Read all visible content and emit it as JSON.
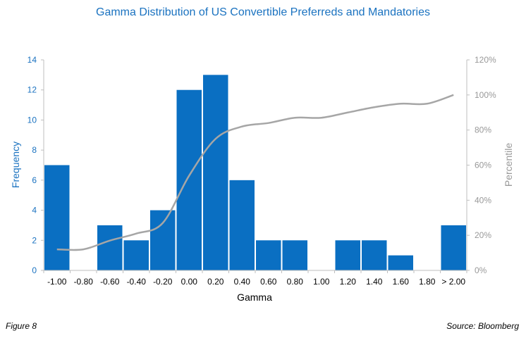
{
  "colors": {
    "bar": "#0a6fc2",
    "line": "#a6a6a6",
    "title": "#1a72c0",
    "left_axis": "#1a72c0",
    "right_axis": "#999999"
  },
  "figure": {
    "caption": "Figure 8",
    "source": "Source: Bloomberg"
  },
  "chart_data": {
    "type": "bar",
    "title": "Gamma Distribution of US Convertible Preferreds and Mandatories",
    "xlabel": "Gamma",
    "ylabel": "Frequency",
    "y2label": "Percentile",
    "categories": [
      "-1.00",
      "-0.80",
      "-0.60",
      "-0.40",
      "-0.20",
      "0.00",
      "0.20",
      "0.40",
      "0.60",
      "0.80",
      "1.00",
      "1.20",
      "1.40",
      "1.60",
      "1.80",
      "> 2.00"
    ],
    "ylim": [
      0,
      14
    ],
    "yticks": [
      "0",
      "2",
      "4",
      "6",
      "8",
      "10",
      "12",
      "14"
    ],
    "y2lim": [
      0,
      1.2
    ],
    "y2ticks": [
      "0%",
      "20%",
      "40%",
      "60%",
      "80%",
      "100%",
      "120%"
    ],
    "grid": false,
    "series": [
      {
        "name": "Frequency",
        "type": "bar",
        "axis": "left",
        "values": [
          7,
          0,
          3,
          2,
          4,
          12,
          13,
          6,
          2,
          2,
          0,
          2,
          2,
          1,
          0,
          3
        ]
      },
      {
        "name": "Percentile",
        "type": "line",
        "axis": "right",
        "values": [
          0.12,
          0.12,
          0.17,
          0.21,
          0.27,
          0.54,
          0.75,
          0.82,
          0.84,
          0.87,
          0.87,
          0.9,
          0.93,
          0.95,
          0.95,
          1.0
        ]
      }
    ]
  }
}
